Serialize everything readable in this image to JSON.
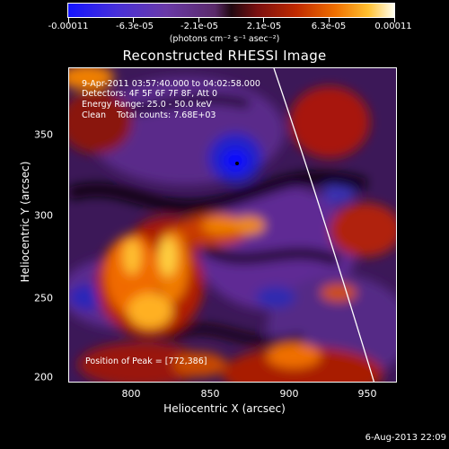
{
  "colorbar": {
    "tick_labels": [
      "-0.00011",
      "-6.3e-05",
      "-2.1e-05",
      "2.1e-05",
      "6.3e-05",
      "0.00011"
    ],
    "units": "(photons cm⁻² s⁻¹ asec⁻²)"
  },
  "title": "Reconstructed RHESSI Image",
  "annotations": {
    "time_range": "9-Apr-2011 03:57:40.000 to 04:02:58.000",
    "detectors": "Detectors: 4F 5F 6F 7F 8F, Att 0",
    "energy": "Energy Range: 25.0 - 50.0 keV",
    "clean": "Clean    Total counts: 7.68E+03",
    "peak": "Position of Peak = [772,386]"
  },
  "axes": {
    "x_label": "Heliocentric X (arcsec)",
    "y_label": "Heliocentric Y (arcsec)",
    "x_ticks": [
      "800",
      "850",
      "900",
      "950"
    ],
    "y_ticks": [
      "350",
      "300",
      "250",
      "200"
    ]
  },
  "timestamp": "6-Aug-2013 22:09",
  "colors": {
    "background": "#000000",
    "foreground": "#ffffff"
  }
}
